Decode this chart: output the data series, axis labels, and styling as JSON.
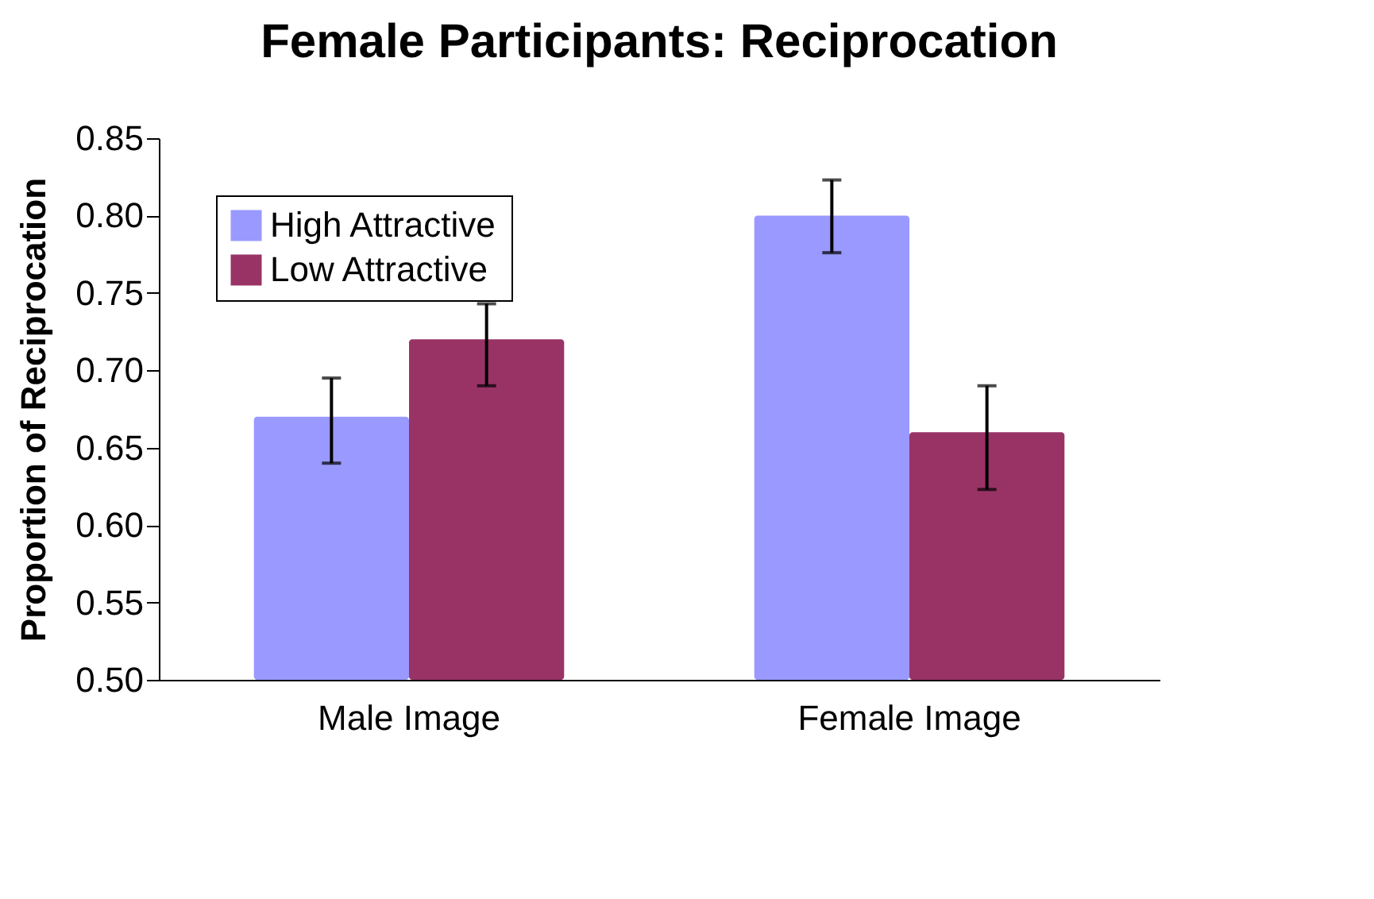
{
  "chart_data": {
    "type": "bar",
    "title": "Female Participants: Reciprocation",
    "ylabel": "Proportion of Reciprocation",
    "categories": [
      "Male Image",
      "Female Image"
    ],
    "series": [
      {
        "name": "High Attractive",
        "color": "#9999ff",
        "values": [
          0.67,
          0.8
        ],
        "errors": [
          [
            0.64,
            0.695
          ],
          [
            0.776,
            0.823
          ]
        ]
      },
      {
        "name": "Low Attractive",
        "color": "#993366",
        "values": [
          0.72,
          0.66
        ],
        "errors": [
          [
            0.69,
            0.743
          ],
          [
            0.623,
            0.69
          ]
        ]
      }
    ],
    "ylim": [
      0.5,
      0.85
    ],
    "yticks": [
      {
        "value": 0.5,
        "label": "0.50"
      },
      {
        "value": 0.55,
        "label": "0.55"
      },
      {
        "value": 0.6,
        "label": "0.60"
      },
      {
        "value": 0.65,
        "label": "0.65"
      },
      {
        "value": 0.7,
        "label": "0.70"
      },
      {
        "value": 0.75,
        "label": "0.75"
      },
      {
        "value": 0.8,
        "label": "0.80"
      },
      {
        "value": 0.85,
        "label": "0.85"
      }
    ],
    "grid": false,
    "legend": "top left"
  }
}
